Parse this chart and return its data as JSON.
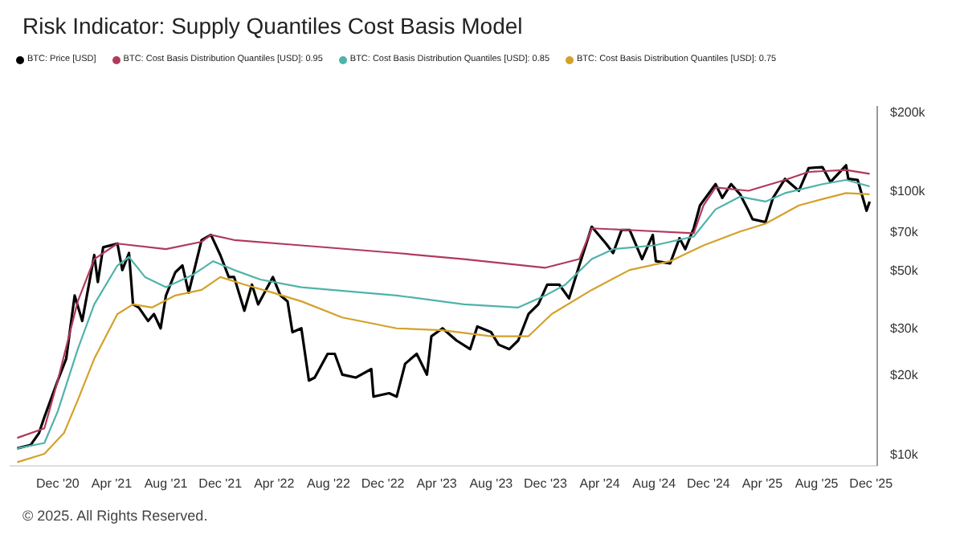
{
  "chart_data": {
    "type": "line",
    "title": "Risk Indicator: Supply Quantiles Cost Basis Model",
    "annotations": [
      "© 2025. All Rights Reserved."
    ],
    "legend": "top left",
    "log": "y",
    "grid": false,
    "marker": "none",
    "line_style": "solid",
    "xlim": [
      "2020-08-15",
      "2025-12-15"
    ],
    "xticks": [
      {
        "value": "2020-12-01",
        "label": "Dec '20"
      },
      {
        "value": "2021-04-01",
        "label": "Apr '21"
      },
      {
        "value": "2021-08-01",
        "label": "Aug '21"
      },
      {
        "value": "2021-12-01",
        "label": "Dec '21"
      },
      {
        "value": "2022-04-01",
        "label": "Apr '22"
      },
      {
        "value": "2022-08-01",
        "label": "Aug '22"
      },
      {
        "value": "2022-12-01",
        "label": "Dec '22"
      },
      {
        "value": "2023-04-01",
        "label": "Apr '23"
      },
      {
        "value": "2023-08-01",
        "label": "Aug '23"
      },
      {
        "value": "2023-12-01",
        "label": "Dec '23"
      },
      {
        "value": "2024-04-01",
        "label": "Apr '24"
      },
      {
        "value": "2024-08-01",
        "label": "Aug '24"
      },
      {
        "value": "2024-12-01",
        "label": "Dec '24"
      },
      {
        "value": "2025-04-01",
        "label": "Apr '25"
      },
      {
        "value": "2025-08-01",
        "label": "Aug '25"
      },
      {
        "value": "2025-12-01",
        "label": "Dec '25"
      }
    ],
    "ylim": [
      9000,
      210000
    ],
    "yticks": [
      {
        "value": 10000,
        "label": "$10k"
      },
      {
        "value": 20000,
        "label": "$20k"
      },
      {
        "value": 30000,
        "label": "$30k"
      },
      {
        "value": 50000,
        "label": "$50k"
      },
      {
        "value": 70000,
        "label": "$70k"
      },
      {
        "value": 100000,
        "label": "$100k"
      },
      {
        "value": 200000,
        "label": "$200k"
      }
    ],
    "series": [
      {
        "name": "BTC: Price [USD]",
        "color": "#000000",
        "x": [
          "2020-09-01",
          "2020-10-01",
          "2020-10-20",
          "2020-11-01",
          "2020-11-15",
          "2020-12-01",
          "2020-12-20",
          "2021-01-08",
          "2021-01-25",
          "2021-02-10",
          "2021-02-21",
          "2021-03-01",
          "2021-03-13",
          "2021-04-14",
          "2021-04-25",
          "2021-05-10",
          "2021-05-19",
          "2021-06-01",
          "2021-06-22",
          "2021-07-05",
          "2021-07-20",
          "2021-08-01",
          "2021-08-22",
          "2021-09-07",
          "2021-09-21",
          "2021-10-20",
          "2021-11-10",
          "2021-12-01",
          "2021-12-20",
          "2022-01-01",
          "2022-01-24",
          "2022-02-10",
          "2022-02-24",
          "2022-03-29",
          "2022-04-15",
          "2022-05-01",
          "2022-05-12",
          "2022-06-01",
          "2022-06-18",
          "2022-07-01",
          "2022-07-30",
          "2022-08-15",
          "2022-09-01",
          "2022-10-01",
          "2022-11-05",
          "2022-11-10",
          "2022-12-15",
          "2023-01-01",
          "2023-01-20",
          "2023-02-15",
          "2023-03-10",
          "2023-03-20",
          "2023-04-14",
          "2023-05-15",
          "2023-06-15",
          "2023-07-01",
          "2023-08-01",
          "2023-08-18",
          "2023-09-11",
          "2023-10-01",
          "2023-10-24",
          "2023-11-15",
          "2023-12-05",
          "2024-01-01",
          "2024-01-23",
          "2024-02-15",
          "2024-03-14",
          "2024-04-15",
          "2024-05-01",
          "2024-05-20",
          "2024-06-07",
          "2024-07-05",
          "2024-07-29",
          "2024-08-05",
          "2024-09-06",
          "2024-09-27",
          "2024-10-10",
          "2024-10-29",
          "2024-11-12",
          "2024-12-17",
          "2025-01-01",
          "2025-01-21",
          "2025-02-10",
          "2025-03-01",
          "2025-03-10",
          "2025-04-08",
          "2025-04-25",
          "2025-05-22",
          "2025-06-22",
          "2025-07-14",
          "2025-08-14",
          "2025-09-01",
          "2025-10-06",
          "2025-10-11",
          "2025-11-01",
          "2025-11-21",
          "2025-11-28"
        ],
        "values": [
          10500,
          10800,
          12000,
          13800,
          16000,
          19000,
          23000,
          40000,
          32000,
          45000,
          57000,
          45000,
          61000,
          63000,
          50000,
          58000,
          37000,
          36000,
          32000,
          34000,
          30000,
          40000,
          49000,
          52000,
          41000,
          65000,
          68000,
          57000,
          47000,
          47000,
          35000,
          44000,
          37000,
          47000,
          40000,
          38000,
          29000,
          30000,
          19000,
          19500,
          24000,
          24000,
          20000,
          19500,
          21000,
          16500,
          17000,
          16500,
          22000,
          24000,
          20000,
          28000,
          30000,
          27000,
          25000,
          30500,
          29000,
          26000,
          25000,
          27000,
          34000,
          37000,
          44000,
          44000,
          39000,
          52000,
          73000,
          63000,
          58000,
          71000,
          71000,
          55000,
          68000,
          54000,
          53000,
          66000,
          60000,
          72000,
          88000,
          106000,
          94000,
          106000,
          97000,
          84000,
          78000,
          76000,
          94000,
          111000,
          100000,
          122000,
          123000,
          108000,
          125000,
          111000,
          110000,
          84000,
          91000
        ]
      },
      {
        "name": "BTC: Cost Basis Distribution Quantiles [USD]: 0.95",
        "color": "#b03a5b",
        "x": [
          "2020-09-01",
          "2020-11-01",
          "2020-12-01",
          "2021-01-15",
          "2021-02-21",
          "2021-04-14",
          "2021-08-01",
          "2021-10-20",
          "2021-11-10",
          "2022-01-01",
          "2022-06-01",
          "2023-01-01",
          "2023-06-01",
          "2023-12-01",
          "2024-02-15",
          "2024-03-14",
          "2024-06-01",
          "2024-10-29",
          "2024-11-20",
          "2024-12-17",
          "2025-03-01",
          "2025-05-22",
          "2025-07-14",
          "2025-10-06",
          "2025-11-28"
        ],
        "values": [
          11500,
          12500,
          19000,
          38000,
          55000,
          63000,
          60000,
          64000,
          68000,
          65000,
          62000,
          58000,
          55000,
          51000,
          55000,
          72000,
          71000,
          69000,
          88000,
          103000,
          100000,
          110000,
          118000,
          120000,
          116000
        ]
      },
      {
        "name": "BTC: Cost Basis Distribution Quantiles [USD]: 0.85",
        "color": "#4fb3a9",
        "x": [
          "2020-09-01",
          "2020-11-01",
          "2020-12-01",
          "2021-01-15",
          "2021-02-21",
          "2021-04-14",
          "2021-05-10",
          "2021-06-15",
          "2021-08-01",
          "2021-10-01",
          "2021-11-15",
          "2022-01-01",
          "2022-03-01",
          "2022-06-01",
          "2023-01-01",
          "2023-06-01",
          "2023-10-01",
          "2023-12-01",
          "2024-01-15",
          "2024-03-14",
          "2024-05-01",
          "2024-08-01",
          "2024-10-29",
          "2024-12-17",
          "2025-02-10",
          "2025-04-08",
          "2025-05-22",
          "2025-08-14",
          "2025-10-06",
          "2025-11-28"
        ],
        "values": [
          10500,
          11000,
          14500,
          25000,
          37000,
          52000,
          56000,
          47000,
          43000,
          48000,
          54000,
          50000,
          46000,
          43000,
          40000,
          37000,
          36000,
          40000,
          44000,
          55000,
          60000,
          62000,
          67000,
          85000,
          95000,
          91000,
          98000,
          106000,
          110000,
          104000
        ]
      },
      {
        "name": "BTC: Cost Basis Distribution Quantiles [USD]: 0.75",
        "color": "#d4a12a",
        "x": [
          "2020-09-01",
          "2020-11-01",
          "2020-12-15",
          "2021-01-15",
          "2021-02-21",
          "2021-04-14",
          "2021-05-19",
          "2021-07-01",
          "2021-08-22",
          "2021-10-20",
          "2021-12-01",
          "2022-01-24",
          "2022-03-29",
          "2022-06-01",
          "2022-09-01",
          "2023-01-01",
          "2023-04-14",
          "2023-08-01",
          "2023-10-24",
          "2023-12-15",
          "2024-03-14",
          "2024-06-07",
          "2024-09-06",
          "2024-11-20",
          "2025-02-10",
          "2025-04-08",
          "2025-06-22",
          "2025-08-14",
          "2025-10-06",
          "2025-11-28"
        ],
        "values": [
          9300,
          10000,
          12000,
          16000,
          23000,
          34000,
          37000,
          36000,
          40000,
          42000,
          47000,
          44000,
          41000,
          38000,
          33000,
          30000,
          29500,
          28000,
          28000,
          34000,
          42000,
          50000,
          54000,
          62000,
          70000,
          75000,
          88000,
          93000,
          98000,
          97000
        ]
      }
    ]
  }
}
